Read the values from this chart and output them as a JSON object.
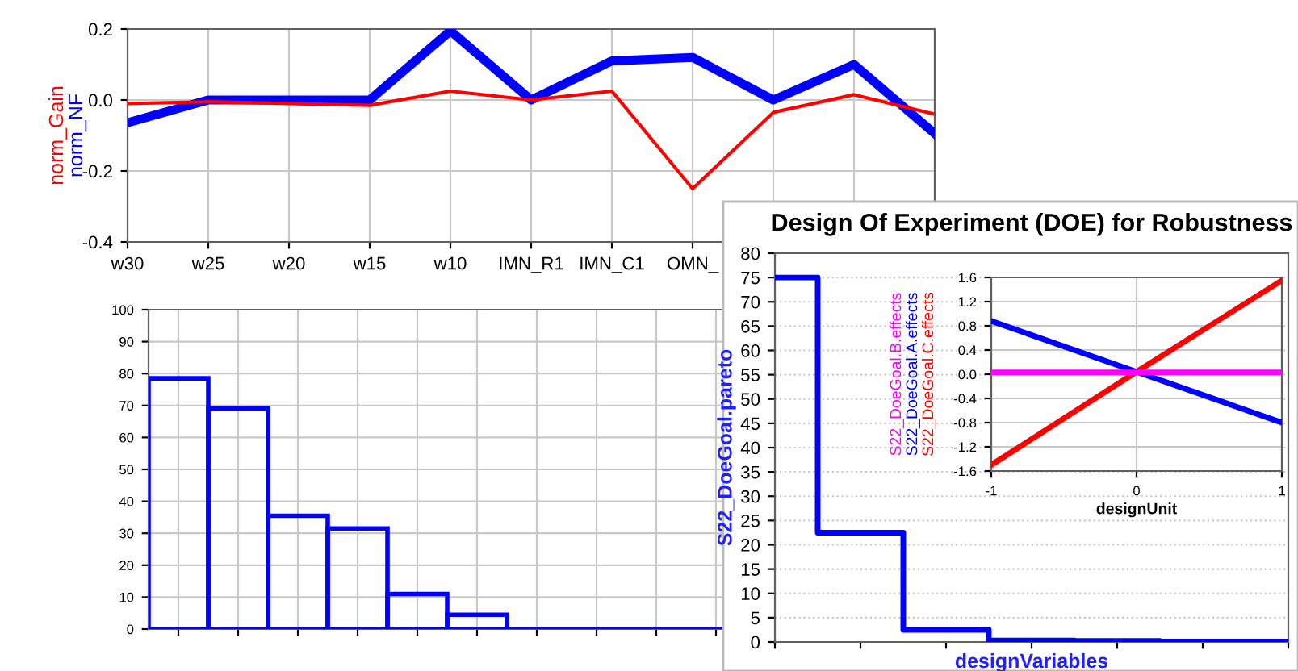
{
  "chart_data": [
    {
      "type": "line",
      "categories": [
        "w30",
        "w25",
        "w20",
        "w15",
        "w10",
        "IMN_R1",
        "IMN_C1",
        "OMN_",
        null,
        null,
        null
      ],
      "series": [
        {
          "name": "norm_Gain",
          "color": "#ff0000",
          "values": [
            -0.01,
            -0.005,
            -0.01,
            -0.015,
            0.025,
            0.0,
            0.025,
            -0.25,
            -0.035,
            0.015,
            -0.04
          ]
        },
        {
          "name": "norm_NF",
          "color": "#0000ff",
          "values": [
            -0.064,
            0.0,
            0.0,
            0.0,
            0.195,
            0.0,
            0.11,
            0.12,
            0.0,
            0.1,
            -0.095
          ]
        }
      ],
      "ylim": [
        -0.4,
        0.2
      ],
      "yticks": [
        -0.4,
        -0.2,
        {
          "value": 0,
          "label": "0.0"
        },
        0.2
      ],
      "grid": true,
      "legend": false
    },
    {
      "type": "bar",
      "categories": [
        null,
        null,
        null,
        null,
        null,
        null,
        null,
        null,
        null,
        null
      ],
      "color": "#0000ff",
      "values": [
        78.5,
        69,
        35.5,
        31.5,
        11,
        4.5,
        0,
        0,
        0,
        0
      ],
      "ylim": [
        0,
        100
      ],
      "yticks": [
        0,
        10,
        20,
        30,
        40,
        50,
        60,
        70,
        80,
        90,
        100
      ],
      "grid": true,
      "tick_labels": "y"
    },
    {
      "type": "step",
      "title": "Design Of Experiment (DOE) for Robustness",
      "xlabel": "designVariables",
      "ylabel": "S22_DoeGoal.pareto",
      "categories": [
        null,
        null,
        null,
        null,
        null,
        null,
        null
      ],
      "color": "#0000ff",
      "values": [
        75,
        22.5,
        2.5,
        0.3,
        0.2,
        0.1,
        0.1
      ],
      "ylim": [
        0,
        80
      ],
      "yticks": [
        0,
        5,
        10,
        15,
        20,
        25,
        30,
        35,
        40,
        45,
        50,
        55,
        60,
        65,
        70,
        75,
        80
      ],
      "grid": "y",
      "tick_labels": "y"
    },
    {
      "type": "line",
      "xlabel": "designUnit",
      "series": [
        {
          "name": "S22_DoeGoal.B.effects",
          "color": "#ff00ff",
          "x": [
            -1,
            0,
            1
          ],
          "values": [
            0.03,
            0.03,
            0.03
          ]
        },
        {
          "name": "S22_DoeGoal.A.effects",
          "color": "#0000ff",
          "x": [
            -1,
            0,
            1
          ],
          "values": [
            0.88,
            0.04,
            -0.8
          ]
        },
        {
          "name": "S22_DoeGoal.C.effects",
          "color": "#ff0000",
          "x": [
            -1,
            0,
            1
          ],
          "values": [
            -1.5,
            0.04,
            1.55
          ]
        }
      ],
      "xlim": [
        -1,
        1
      ],
      "xticks": [
        -1,
        0,
        1
      ],
      "ylim": [
        -1.6,
        1.6
      ],
      "yticks": [
        -1.6,
        -1.2,
        -0.8,
        -0.4,
        {
          "value": 0,
          "label": "0.0"
        },
        0.4,
        0.8,
        1.2,
        1.6
      ],
      "grid": true,
      "legend": false
    }
  ]
}
